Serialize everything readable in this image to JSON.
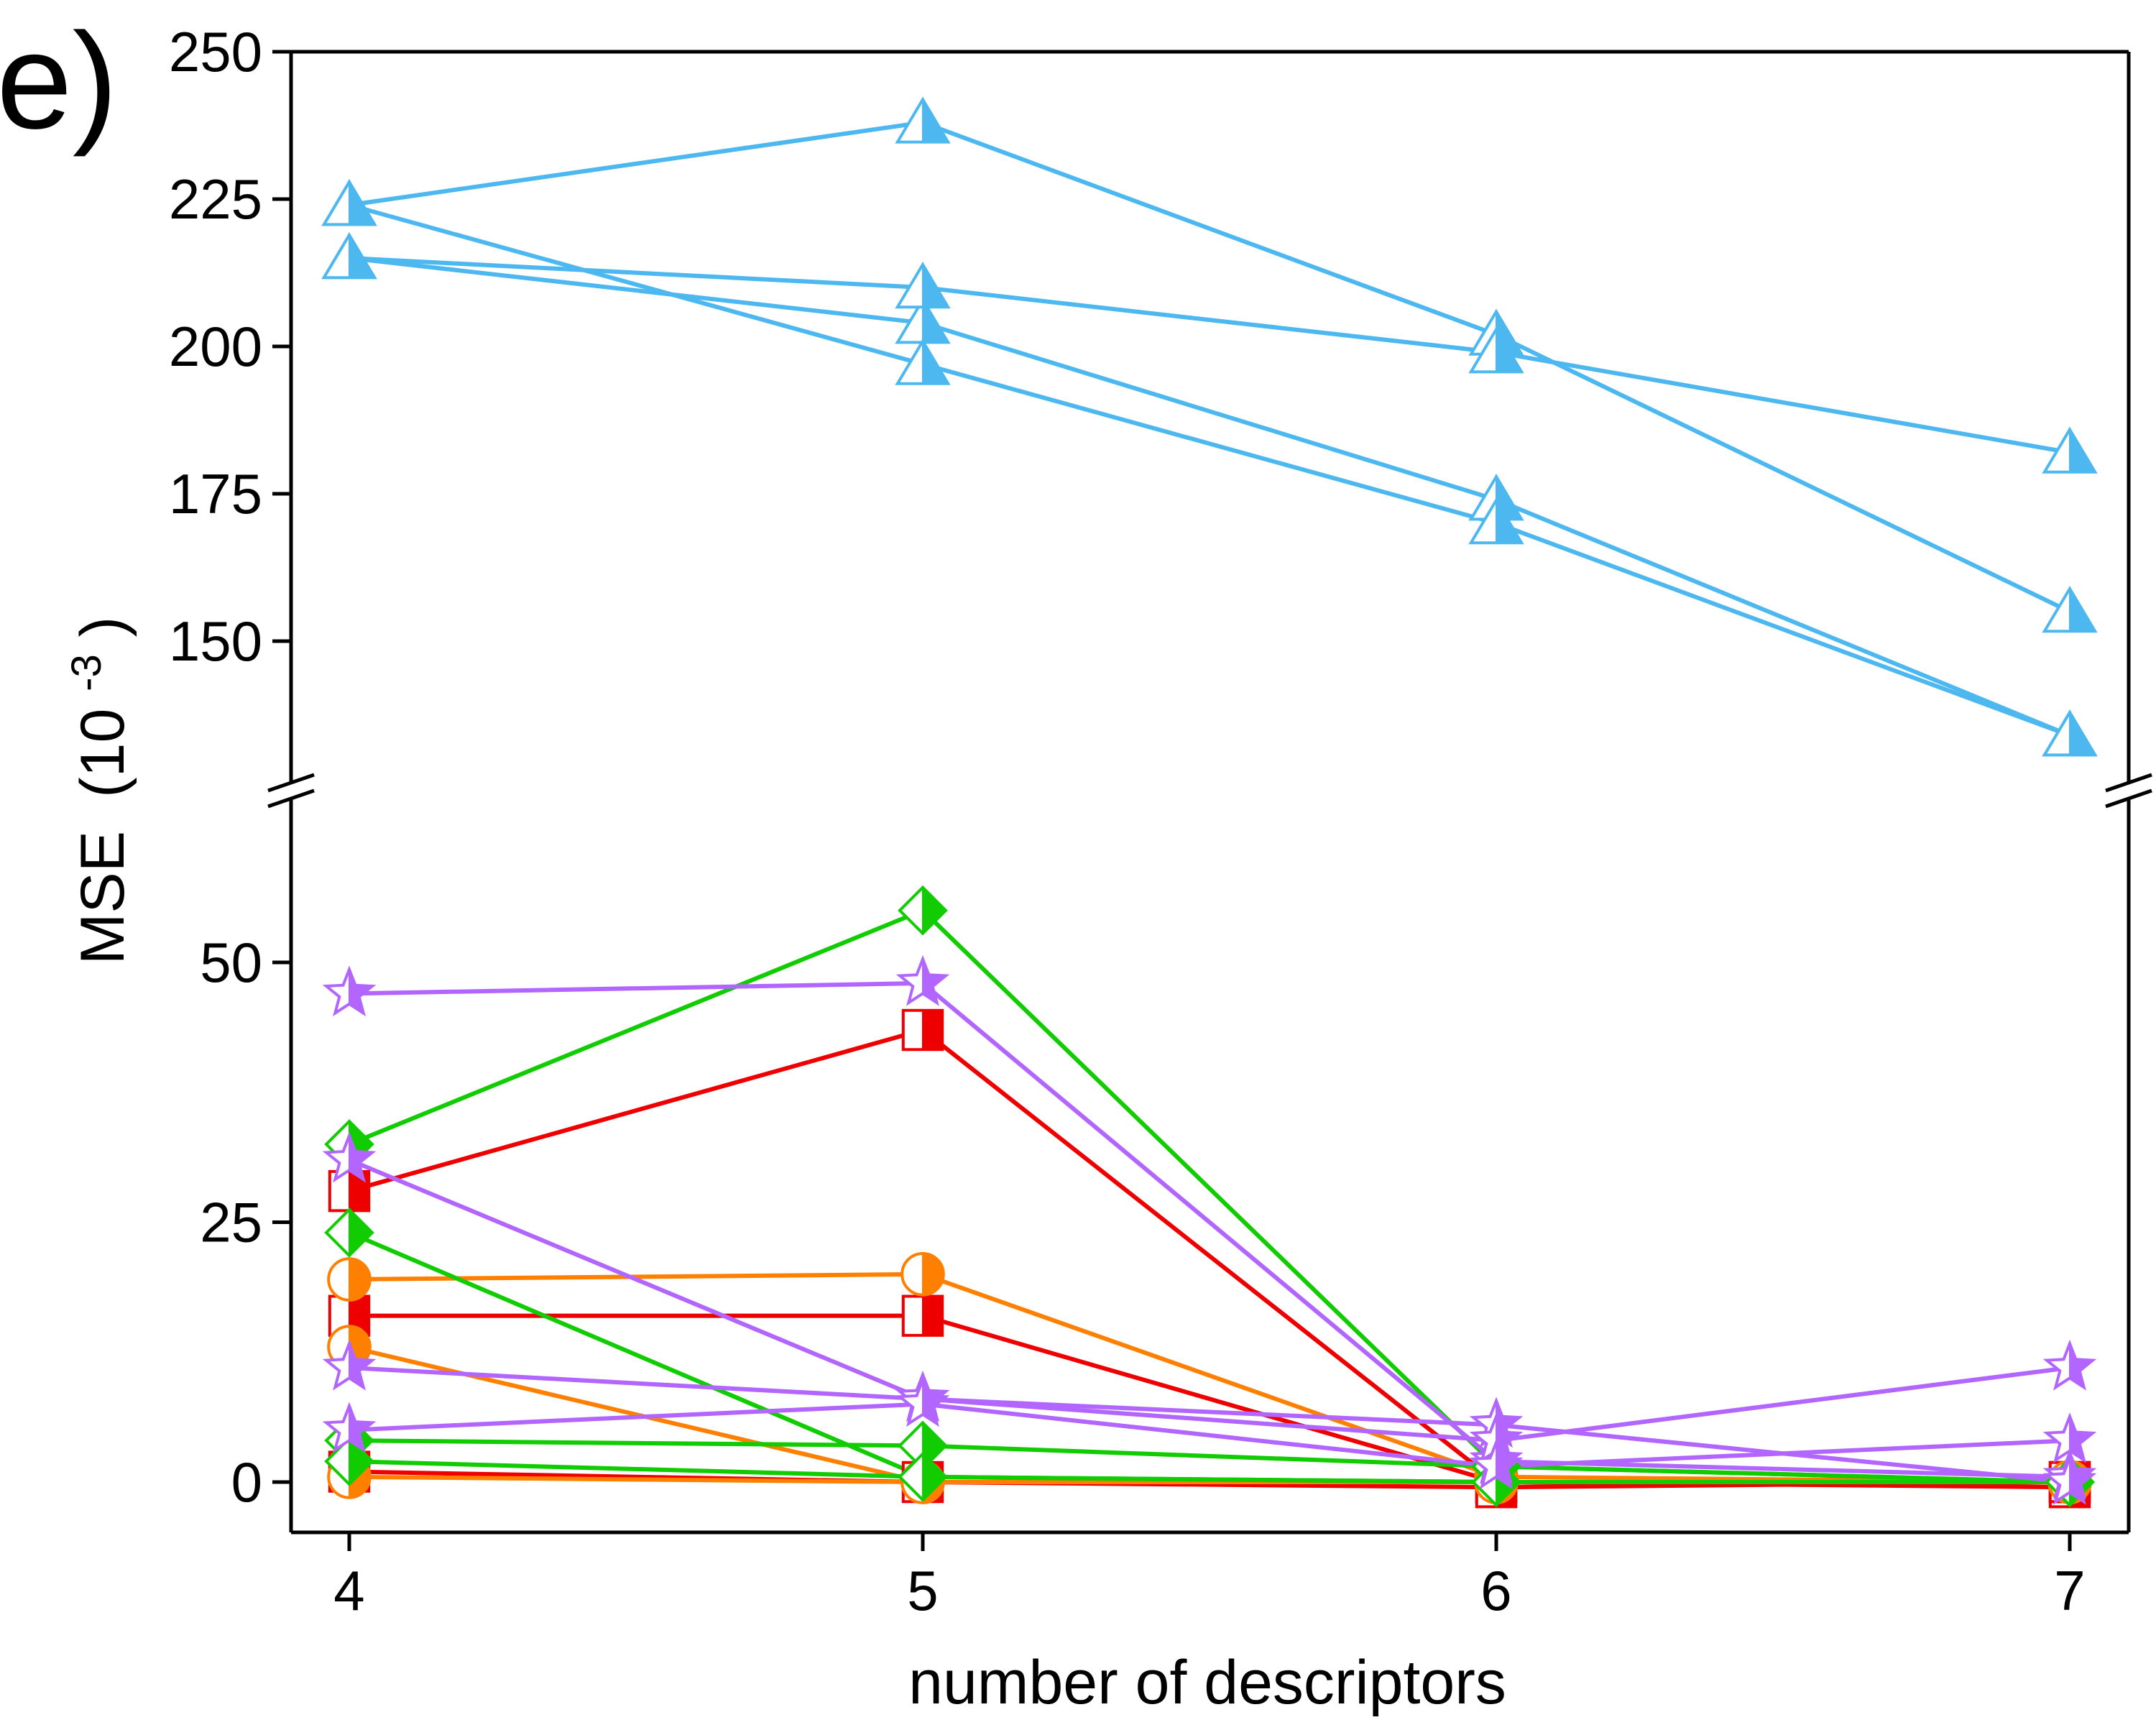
{
  "chart_data": {
    "type": "line",
    "panel_label": "e)",
    "xlabel": "number of descriptors",
    "ylabel": "MSE",
    "ylabel_unit_base": "(10",
    "ylabel_unit_exp": "-3",
    "ylabel_unit_close": ")",
    "x": [
      4,
      5,
      6,
      7
    ],
    "x_ticks": [
      "4",
      "5",
      "6",
      "7"
    ],
    "broken_y_axis": true,
    "y_lower_range": [
      -5,
      60
    ],
    "y_upper_range": [
      130,
      250
    ],
    "y_ticks_lower": [
      0,
      25,
      50
    ],
    "y_ticks_upper": [
      150,
      175,
      200,
      225,
      250
    ],
    "grid": false,
    "colors": {
      "blue": "#4db8f0",
      "red": "#ee0000",
      "orange": "#ff8000",
      "green": "#11cc00",
      "purple": "#b266ff"
    },
    "series": [
      {
        "color": "blue",
        "marker": "triangle",
        "values": [
          224,
          238,
          202,
          155
        ]
      },
      {
        "color": "blue",
        "marker": "triangle",
        "values": [
          215,
          204,
          174,
          134
        ]
      },
      {
        "color": "blue",
        "marker": "triangle",
        "values": [
          215,
          210,
          199,
          182
        ]
      },
      {
        "color": "blue",
        "marker": "triangle",
        "values": [
          224,
          197,
          170,
          134
        ]
      },
      {
        "color": "red",
        "marker": "square",
        "values": [
          28,
          43.5,
          0,
          -0.5
        ]
      },
      {
        "color": "red",
        "marker": "square",
        "values": [
          16,
          16,
          0,
          0
        ]
      },
      {
        "color": "red",
        "marker": "square",
        "values": [
          1,
          0,
          -0.5,
          0
        ]
      },
      {
        "color": "orange",
        "marker": "circle",
        "values": [
          19.5,
          20,
          0.5,
          0
        ]
      },
      {
        "color": "orange",
        "marker": "circle",
        "values": [
          13,
          0,
          0,
          0
        ]
      },
      {
        "color": "orange",
        "marker": "circle",
        "values": [
          0.5,
          0,
          0,
          0
        ]
      },
      {
        "color": "green",
        "marker": "diamond",
        "values": [
          32.5,
          55,
          1.5,
          0
        ]
      },
      {
        "color": "green",
        "marker": "diamond",
        "values": [
          24,
          0.5,
          0,
          0
        ]
      },
      {
        "color": "green",
        "marker": "diamond",
        "values": [
          4,
          3.5,
          1.5,
          0
        ]
      },
      {
        "color": "green",
        "marker": "diamond",
        "values": [
          2,
          0.5,
          0,
          0
        ]
      },
      {
        "color": "purple",
        "marker": "star",
        "values": [
          47,
          48,
          2,
          0.5
        ]
      },
      {
        "color": "purple",
        "marker": "star",
        "values": [
          31,
          8,
          5.5,
          0
        ]
      },
      {
        "color": "purple",
        "marker": "star",
        "values": [
          11,
          8,
          4,
          11
        ]
      },
      {
        "color": "purple",
        "marker": "star",
        "values": [
          5,
          7.5,
          1.5,
          4
        ]
      }
    ]
  }
}
